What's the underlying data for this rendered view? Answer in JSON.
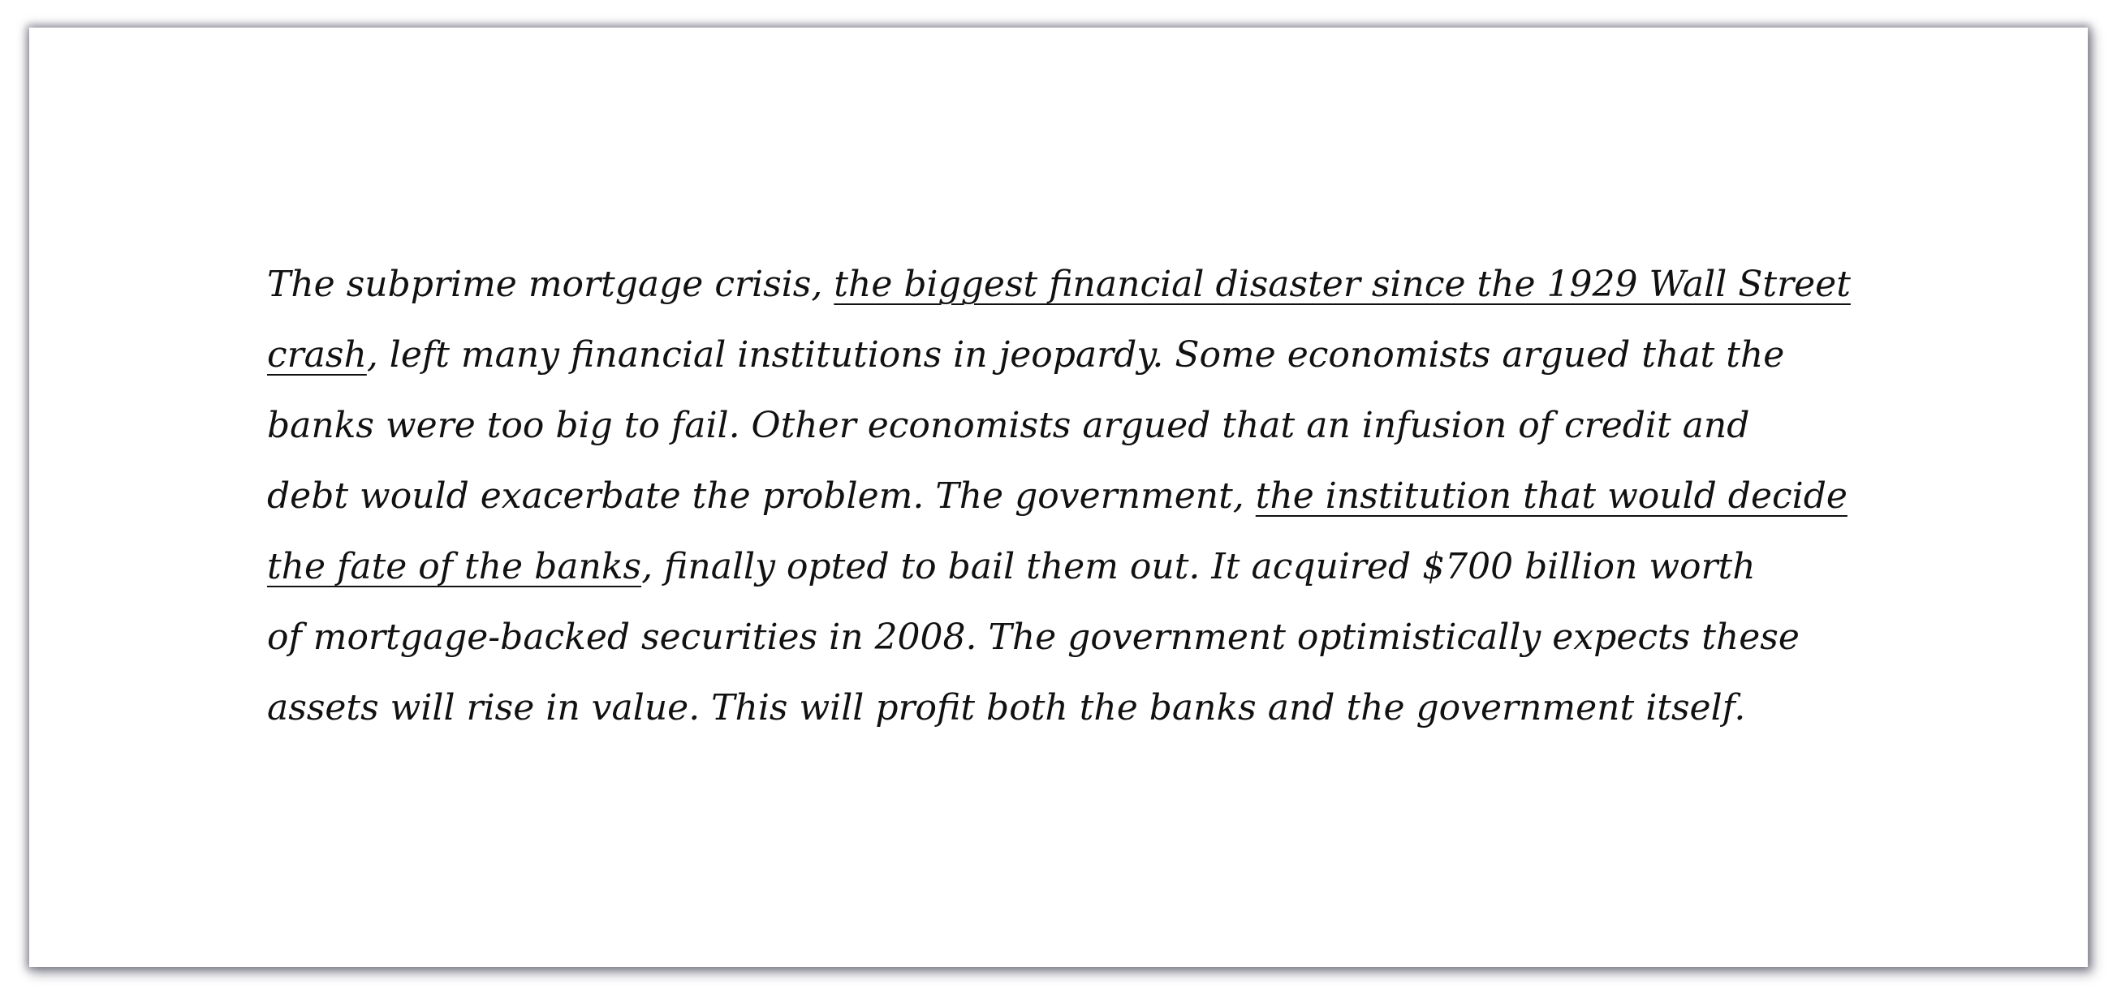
{
  "lines": [
    [
      {
        "text": "The subprime mortgage crisis, ",
        "underline": false
      },
      {
        "text": "the biggest financial disaster since the 1929 Wall Street",
        "underline": true
      }
    ],
    [
      {
        "text": "crash",
        "underline": true
      },
      {
        "text": ", left many financial institutions in jeopardy. Some economists argued that the",
        "underline": false
      }
    ],
    [
      {
        "text": "banks were too big to fail. Other economists argued that an infusion of credit and",
        "underline": false
      }
    ],
    [
      {
        "text": "debt would exacerbate the problem. The government, ",
        "underline": false
      },
      {
        "text": "the institution that would decide",
        "underline": true
      }
    ],
    [
      {
        "text": "the fate of the banks",
        "underline": true
      },
      {
        "text": ", finally opted to bail them out. It acquired $700 billion worth",
        "underline": false
      }
    ],
    [
      {
        "text": "of mortgage-backed securities in 2008. The government optimistically expects these",
        "underline": false
      }
    ],
    [
      {
        "text": "assets will rise in value. This will profit both the banks and the government itself.",
        "underline": false
      }
    ]
  ]
}
